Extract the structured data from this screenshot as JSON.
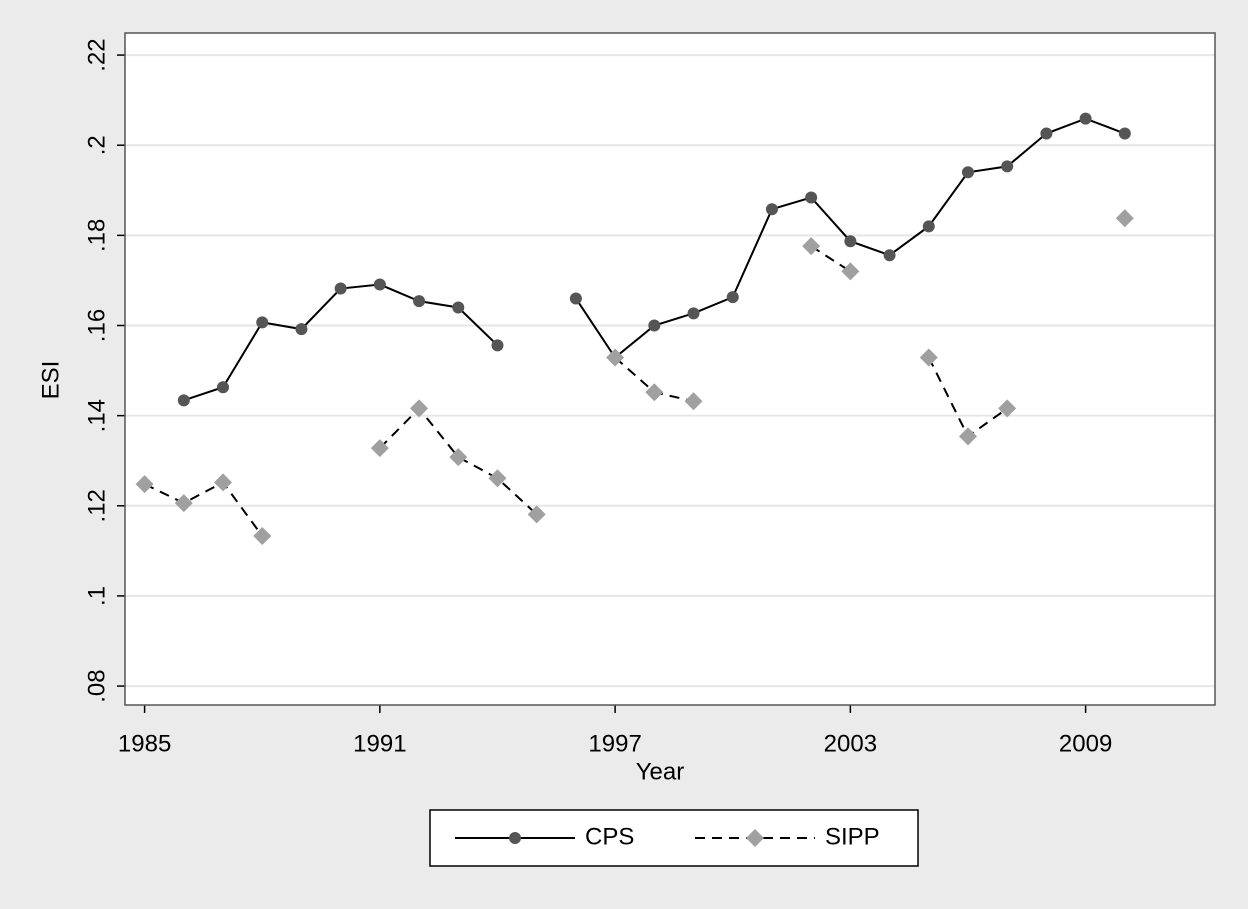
{
  "chart_data": {
    "type": "line",
    "x_label": "Year",
    "y_label": "ESI",
    "x": [
      1985,
      1986,
      1987,
      1988,
      1989,
      1990,
      1991,
      1992,
      1993,
      1994,
      1995,
      1996,
      1997,
      1998,
      1999,
      2000,
      2001,
      2002,
      2003,
      2004,
      2005,
      2006,
      2007,
      2008,
      2009,
      2010
    ],
    "series": [
      {
        "name": "CPS",
        "color": "#555555",
        "line_color": "#000000",
        "dash": false,
        "marker": "circle",
        "values": [
          null,
          0.1434,
          0.1463,
          0.1607,
          0.1592,
          0.1682,
          0.1691,
          0.1654,
          0.164,
          0.1556,
          null,
          0.166,
          0.1529,
          0.16,
          0.1627,
          0.1663,
          0.1858,
          0.1884,
          0.1787,
          0.1756,
          0.182,
          0.194,
          0.1953,
          0.2026,
          0.2059,
          0.2026
        ]
      },
      {
        "name": "SIPP",
        "color": "#a0a0a0",
        "line_color": "#000000",
        "dash": true,
        "marker": "diamond",
        "values": [
          0.1248,
          0.1206,
          0.1252,
          0.1133,
          null,
          null,
          0.1328,
          0.1416,
          0.1308,
          0.1261,
          0.1181,
          null,
          0.1529,
          0.1452,
          0.1432,
          null,
          null,
          0.1776,
          0.172,
          null,
          0.1529,
          0.1354,
          0.1416,
          null,
          null,
          0.1838
        ]
      }
    ],
    "xlim": [
      1984.5,
      2012.3
    ],
    "xticks": [
      1985,
      1991,
      1997,
      2003,
      2009
    ],
    "ylim": [
      0.0758,
      0.2249
    ],
    "yticks": [
      {
        "value": 0.08,
        "label": ".08"
      },
      {
        "value": 0.1,
        "label": ".1"
      },
      {
        "value": 0.12,
        "label": ".12"
      },
      {
        "value": 0.14,
        "label": ".14"
      },
      {
        "value": 0.16,
        "label": ".16"
      },
      {
        "value": 0.18,
        "label": ".18"
      },
      {
        "value": 0.2,
        "label": ".2"
      },
      {
        "value": 0.22,
        "label": ".22"
      }
    ],
    "grid": true,
    "legend": "bottom"
  }
}
